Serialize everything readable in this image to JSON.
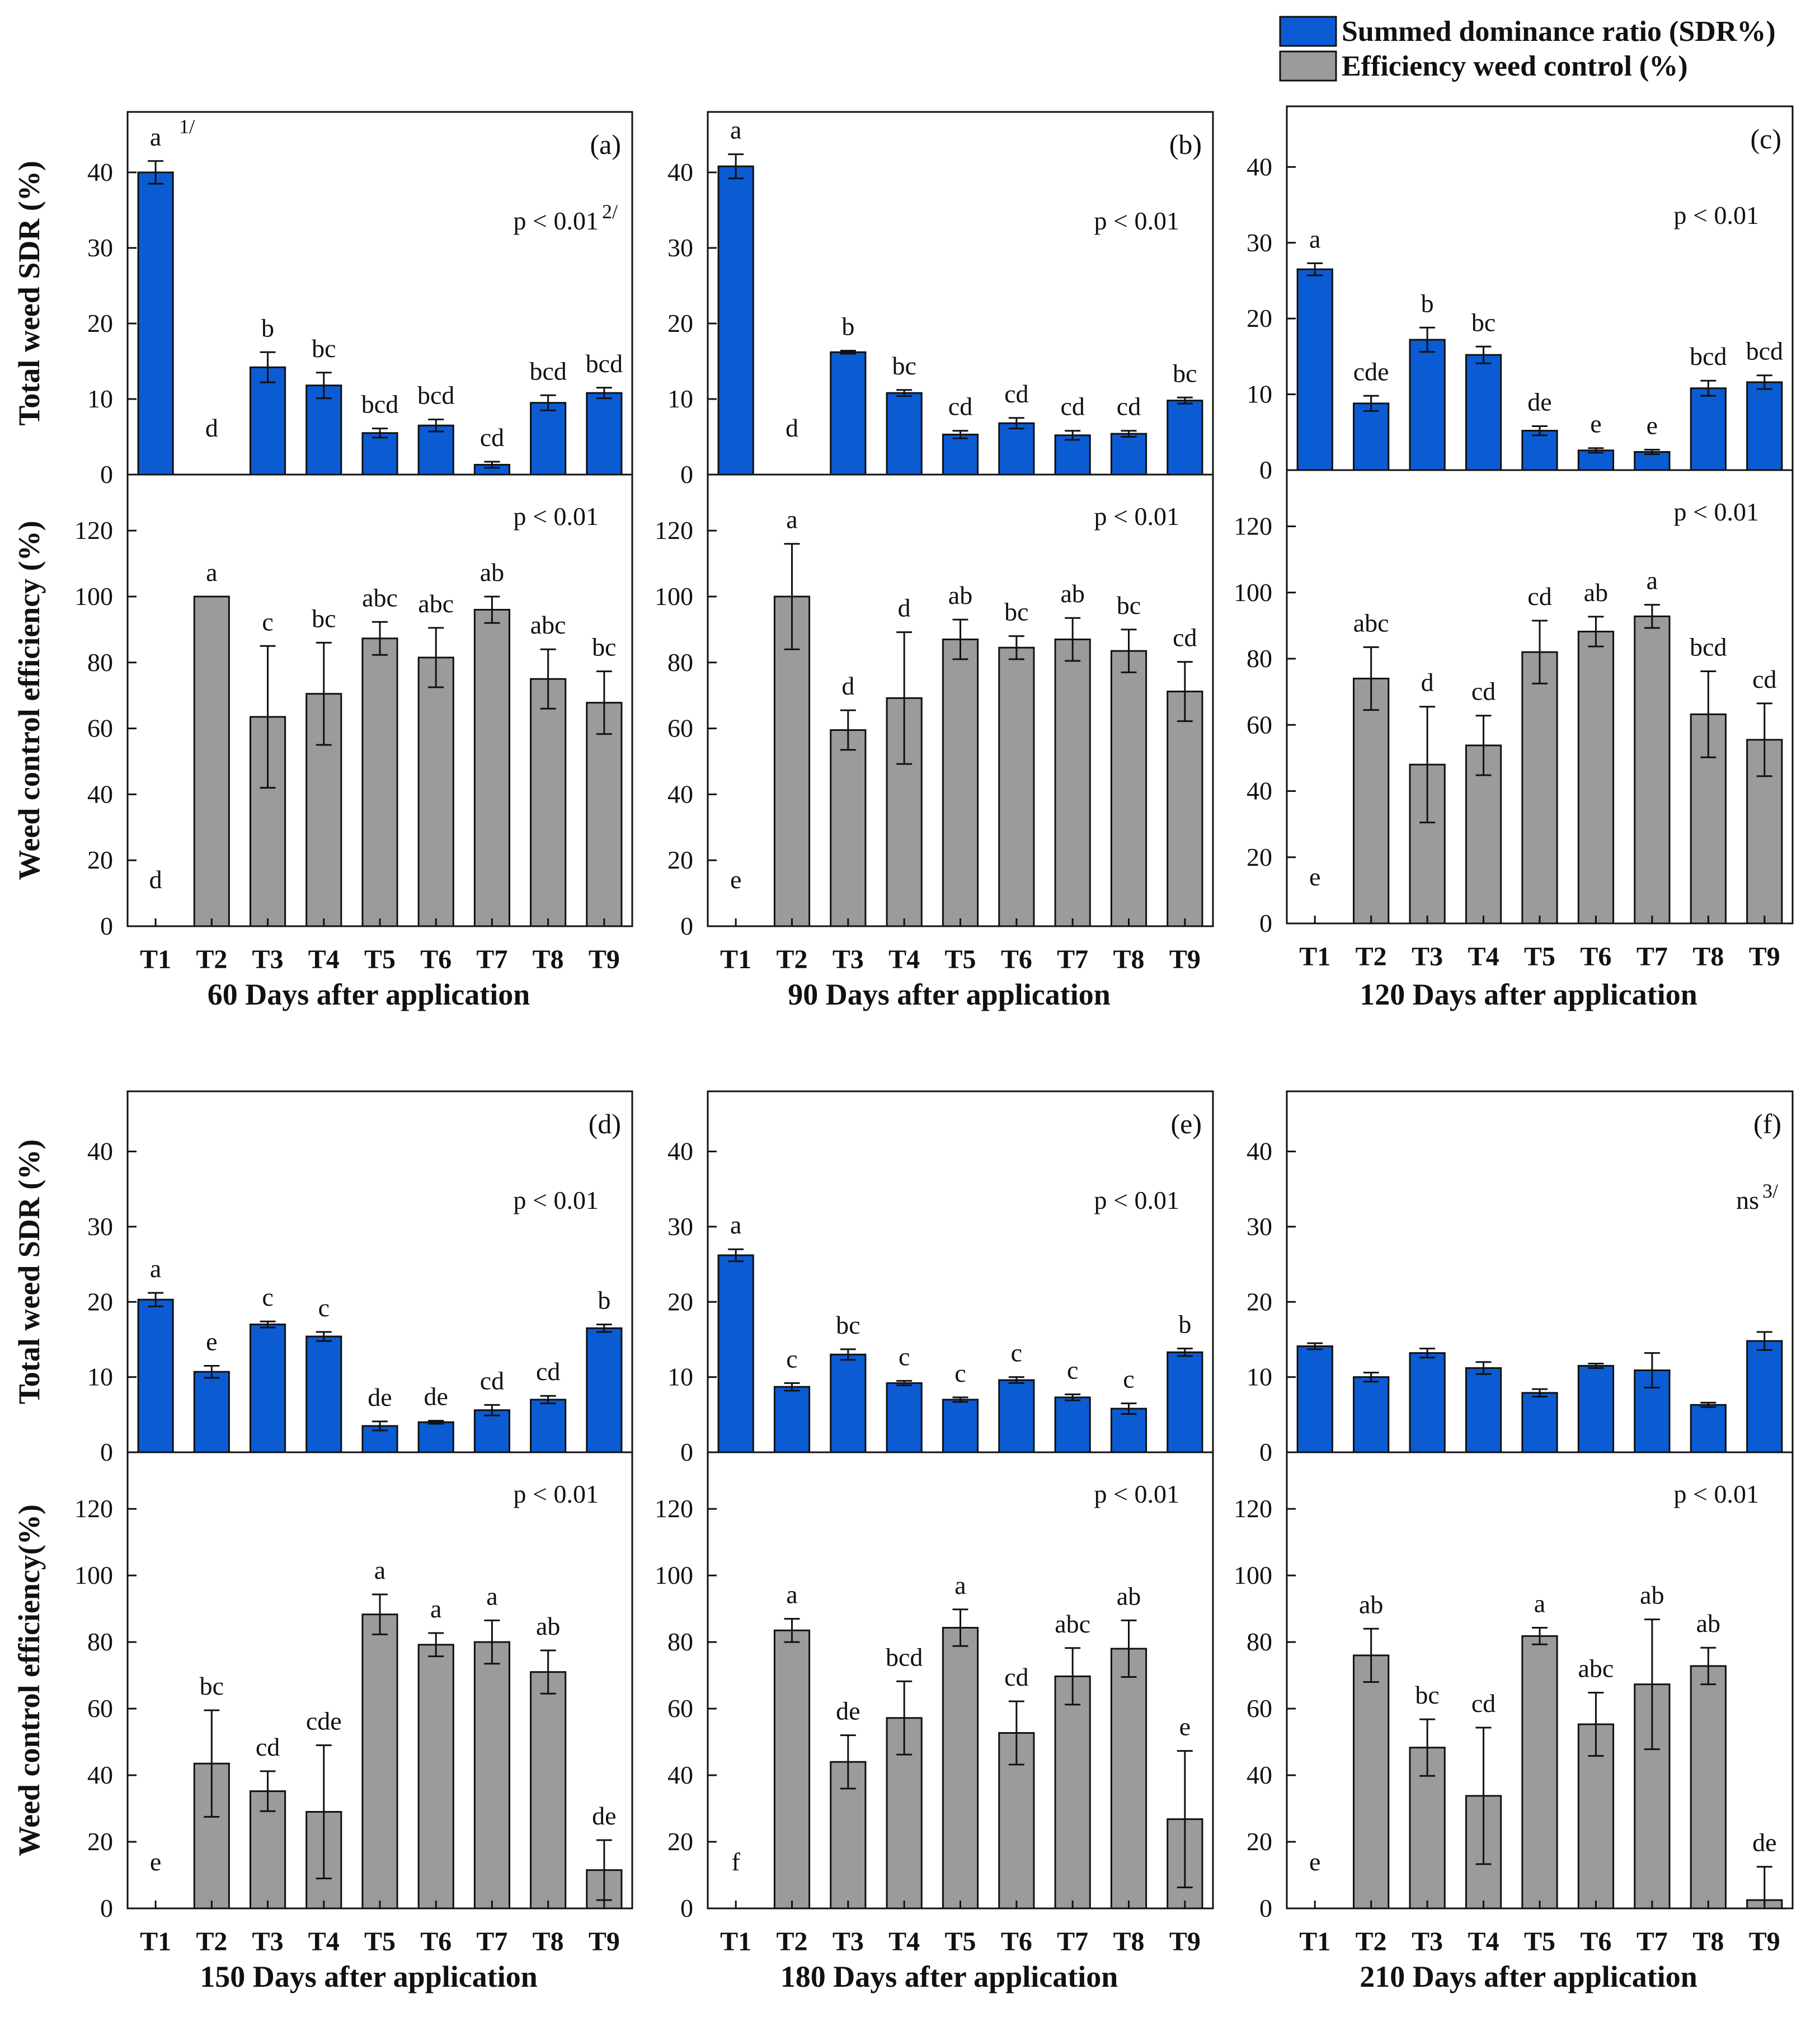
{
  "legend": {
    "sdr_label": "Summed dominance ratio (SDR%)",
    "eff_label": "Efficiency weed control (%)",
    "sdr_color": "#0b5bd3",
    "eff_color": "#9b9b9b"
  },
  "chart_data": [
    {
      "type": "bar",
      "panel": "(a)",
      "xlabel": "60 Days after application",
      "categories": [
        "T1",
        "T2",
        "T3",
        "T4",
        "T5",
        "T6",
        "T7",
        "T8",
        "T9"
      ],
      "sdr": {
        "ylabel": "Total weed SDR (%)",
        "ylim": [
          0,
          48
        ],
        "yticks": [
          0,
          10,
          20,
          30,
          40
        ],
        "values": [
          40,
          0,
          14.2,
          11.8,
          5.5,
          6.5,
          1.3,
          9.5,
          10.8
        ],
        "errors": [
          1.5,
          0,
          2.0,
          1.7,
          0.6,
          0.8,
          0.4,
          1.0,
          0.7
        ],
        "letters": [
          "a",
          "d",
          "b",
          "bc",
          "bcd",
          "bcd",
          "cd",
          "bcd",
          "bcd"
        ],
        "first_note": "1/",
        "pvalue": "p < 0.01",
        "pvalue_note": "2/"
      },
      "eff": {
        "ylabel": "Weed control efficiency (%)",
        "ylim": [
          0,
          137
        ],
        "yticks": [
          0,
          20,
          40,
          60,
          80,
          100,
          120
        ],
        "values": [
          0,
          100,
          63.5,
          70.5,
          87.3,
          81.5,
          96,
          75,
          67.8
        ],
        "errors": [
          0,
          0,
          21.5,
          15.5,
          5,
          9,
          4,
          9,
          9.5
        ],
        "letters": [
          "d",
          "a",
          "c",
          "bc",
          "abc",
          "abc",
          "ab",
          "abc",
          "bc"
        ],
        "pvalue": "p < 0.01"
      }
    },
    {
      "type": "bar",
      "panel": "(b)",
      "xlabel": "90 Days after application",
      "categories": [
        "T1",
        "T2",
        "T3",
        "T4",
        "T5",
        "T6",
        "T7",
        "T8",
        "T9"
      ],
      "sdr": {
        "ylim": [
          0,
          48
        ],
        "yticks": [
          0,
          10,
          20,
          30,
          40
        ],
        "values": [
          40.8,
          0,
          16.2,
          10.8,
          5.3,
          6.8,
          5.2,
          5.4,
          9.8
        ],
        "errors": [
          1.6,
          0,
          0.2,
          0.4,
          0.5,
          0.7,
          0.6,
          0.4,
          0.4
        ],
        "letters": [
          "a",
          "d",
          "b",
          "bc",
          "cd",
          "cd",
          "cd",
          "cd",
          "bc"
        ],
        "pvalue": "p < 0.01"
      },
      "eff": {
        "ylim": [
          0,
          137
        ],
        "yticks": [
          0,
          20,
          40,
          60,
          80,
          100,
          120
        ],
        "values": [
          0,
          100,
          59.5,
          69.2,
          87,
          84.5,
          87,
          83.5,
          71.2
        ],
        "errors": [
          0,
          16,
          6,
          20,
          6,
          3.5,
          6.5,
          6.5,
          9
        ],
        "letters": [
          "e",
          "a",
          "d",
          "d",
          "ab",
          "bc",
          "ab",
          "bc",
          "cd"
        ],
        "pvalue": "p < 0.01"
      }
    },
    {
      "type": "bar",
      "panel": "(c)",
      "xlabel": "120 Days after application",
      "categories": [
        "T1",
        "T2",
        "T3",
        "T4",
        "T5",
        "T6",
        "T7",
        "T8",
        "T9"
      ],
      "sdr": {
        "ylim": [
          0,
          48
        ],
        "yticks": [
          0,
          10,
          20,
          30,
          40
        ],
        "values": [
          26.5,
          8.8,
          17.2,
          15.2,
          5.2,
          2.6,
          2.4,
          10.8,
          11.6
        ],
        "errors": [
          0.8,
          1.0,
          1.6,
          1.1,
          0.6,
          0.3,
          0.3,
          1.0,
          0.9
        ],
        "letters": [
          "a",
          "cde",
          "b",
          "bc",
          "de",
          "e",
          "e",
          "bcd",
          "bcd"
        ],
        "pvalue": "p < 0.01"
      },
      "eff": {
        "ylim": [
          0,
          137
        ],
        "yticks": [
          0,
          20,
          40,
          60,
          80,
          100,
          120
        ],
        "values": [
          0,
          74,
          48,
          53.8,
          82,
          88.2,
          92.8,
          63.2,
          55.5
        ],
        "errors": [
          0,
          9.5,
          17.5,
          9,
          9.5,
          4.5,
          3.5,
          13,
          11
        ],
        "letters": [
          "e",
          "abc",
          "d",
          "cd",
          "cd",
          "ab",
          "a",
          "bcd",
          "cd"
        ],
        "pvalue": "p < 0.01"
      }
    },
    {
      "type": "bar",
      "panel": "(d)",
      "xlabel": "150 Days after application",
      "categories": [
        "T1",
        "T2",
        "T3",
        "T4",
        "T5",
        "T6",
        "T7",
        "T8",
        "T9"
      ],
      "sdr": {
        "ylabel": "Total weed SDR (%)",
        "ylim": [
          0,
          48
        ],
        "yticks": [
          0,
          10,
          20,
          30,
          40
        ],
        "values": [
          20.3,
          10.7,
          17,
          15.4,
          3.5,
          4,
          5.6,
          7,
          16.5
        ],
        "errors": [
          0.9,
          0.8,
          0.4,
          0.6,
          0.6,
          0.2,
          0.7,
          0.5,
          0.5
        ],
        "letters": [
          "a",
          "e",
          "c",
          "c",
          "de",
          "de",
          "cd",
          "cd",
          "b"
        ],
        "pvalue": "p < 0.01"
      },
      "eff": {
        "ylabel": "Weed control efficiency(%)",
        "ylim": [
          0,
          137
        ],
        "yticks": [
          0,
          20,
          40,
          60,
          80,
          100,
          120
        ],
        "values": [
          0,
          43.5,
          35.2,
          29,
          88.3,
          79.2,
          80,
          71,
          11.5
        ],
        "errors": [
          0,
          16,
          6,
          20,
          6,
          3.5,
          6.5,
          6.5,
          9
        ],
        "letters": [
          "e",
          "bc",
          "cd",
          "cde",
          "a",
          "a",
          "a",
          "ab",
          "de"
        ],
        "pvalue": "p < 0.01"
      }
    },
    {
      "type": "bar",
      "panel": "(e)",
      "xlabel": "180 Days after application",
      "categories": [
        "T1",
        "T2",
        "T3",
        "T4",
        "T5",
        "T6",
        "T7",
        "T8",
        "T9"
      ],
      "sdr": {
        "ylim": [
          0,
          48
        ],
        "yticks": [
          0,
          10,
          20,
          30,
          40
        ],
        "values": [
          26.2,
          8.7,
          13,
          9.2,
          7,
          9.6,
          7.3,
          5.8,
          13.3
        ],
        "errors": [
          0.8,
          0.5,
          0.7,
          0.3,
          0.3,
          0.4,
          0.4,
          0.7,
          0.5
        ],
        "letters": [
          "a",
          "c",
          "bc",
          "c",
          "c",
          "c",
          "c",
          "c",
          "b"
        ],
        "pvalue": "p < 0.01"
      },
      "eff": {
        "ylim": [
          0,
          137
        ],
        "yticks": [
          0,
          20,
          40,
          60,
          80,
          100,
          120
        ],
        "values": [
          0,
          83.5,
          44,
          57.2,
          84.3,
          52.7,
          69.7,
          78,
          26.8
        ],
        "errors": [
          0,
          3.5,
          8,
          11,
          5.5,
          9.5,
          8.5,
          8.5,
          20.5
        ],
        "letters": [
          "f",
          "a",
          "de",
          "bcd",
          "a",
          "cd",
          "abc",
          "ab",
          "e"
        ],
        "pvalue": "p < 0.01"
      }
    },
    {
      "type": "bar",
      "panel": "(f)",
      "xlabel": "210 Days after application",
      "categories": [
        "T1",
        "T2",
        "T3",
        "T4",
        "T5",
        "T6",
        "T7",
        "T8",
        "T9"
      ],
      "sdr": {
        "ylim": [
          0,
          48
        ],
        "yticks": [
          0,
          10,
          20,
          30,
          40
        ],
        "values": [
          14.1,
          10,
          13.2,
          11.2,
          7.9,
          11.5,
          10.9,
          6.3,
          14.8
        ],
        "errors": [
          0.4,
          0.6,
          0.6,
          0.8,
          0.5,
          0.3,
          2.3,
          0.3,
          1.2
        ],
        "letters": [
          "",
          "",
          "",
          "",
          "",
          "",
          "",
          "",
          ""
        ],
        "pvalue": "ns",
        "pvalue_note": "3/"
      },
      "eff": {
        "ylim": [
          0,
          137
        ],
        "yticks": [
          0,
          20,
          40,
          60,
          80,
          100,
          120
        ],
        "values": [
          0,
          76,
          48.3,
          33.8,
          81.8,
          55.3,
          67.3,
          72.8,
          2.5
        ],
        "errors": [
          0,
          8,
          8.5,
          20.5,
          2.5,
          9.5,
          19.5,
          5.5,
          10
        ],
        "letters": [
          "e",
          "ab",
          "bc",
          "cd",
          "a",
          "abc",
          "ab",
          "ab",
          "de"
        ],
        "pvalue": "p < 0.01"
      }
    }
  ]
}
